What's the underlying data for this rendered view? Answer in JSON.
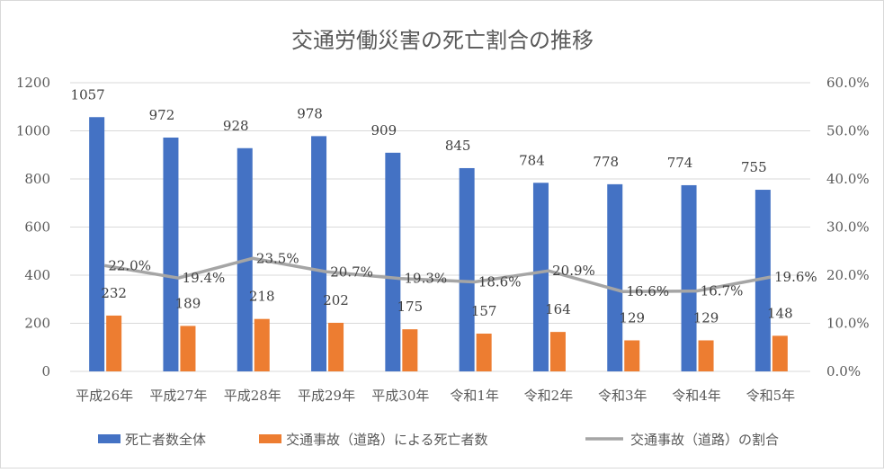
{
  "chart_data": {
    "type": "bar",
    "title": "交通労働災害の死亡割合の推移",
    "categories": [
      "平成26年",
      "平成27年",
      "平成28年",
      "平成29年",
      "平成30年",
      "令和1年",
      "令和2年",
      "令和3年",
      "令和4年",
      "令和5年"
    ],
    "series": [
      {
        "name": "死亡者数全体",
        "type": "bar",
        "axis": "left",
        "color": "#4472C4",
        "values": [
          1057,
          972,
          928,
          978,
          909,
          845,
          784,
          778,
          774,
          755
        ],
        "labels": [
          "1057",
          "972",
          "928",
          "978",
          "909",
          "845",
          "784",
          "778",
          "774",
          "755"
        ]
      },
      {
        "name": "交通事故（道路）による死亡者数",
        "type": "bar",
        "axis": "left",
        "color": "#ED7D31",
        "values": [
          232,
          189,
          218,
          202,
          175,
          157,
          164,
          129,
          129,
          148
        ],
        "labels": [
          "232",
          "189",
          "218",
          "202",
          "175",
          "157",
          "164",
          "129",
          "129",
          "148"
        ]
      },
      {
        "name": "交通事故（道路）の割合",
        "type": "line",
        "axis": "right",
        "color": "#A5A5A5",
        "values": [
          22.0,
          19.4,
          23.5,
          20.7,
          19.3,
          18.6,
          20.9,
          16.6,
          16.7,
          19.6
        ],
        "labels": [
          "22.0%",
          "19.4%",
          "23.5%",
          "20.7%",
          "19.3%",
          "18.6%",
          "20.9%",
          "16.6%",
          "16.7%",
          "19.6%"
        ]
      }
    ],
    "y_left": {
      "min": 0,
      "max": 1200,
      "ticks": [
        0,
        200,
        400,
        600,
        800,
        1000,
        1200
      ],
      "tick_labels": [
        "0",
        "200",
        "400",
        "600",
        "800",
        "1000",
        "1200"
      ]
    },
    "y_right": {
      "min": 0,
      "max": 60,
      "ticks": [
        0,
        10,
        20,
        30,
        40,
        50,
        60
      ],
      "tick_labels": [
        "0.0%",
        "10.0%",
        "20.0%",
        "30.0%",
        "40.0%",
        "50.0%",
        "60.0%"
      ]
    },
    "grid": true,
    "legend_position": "bottom"
  }
}
